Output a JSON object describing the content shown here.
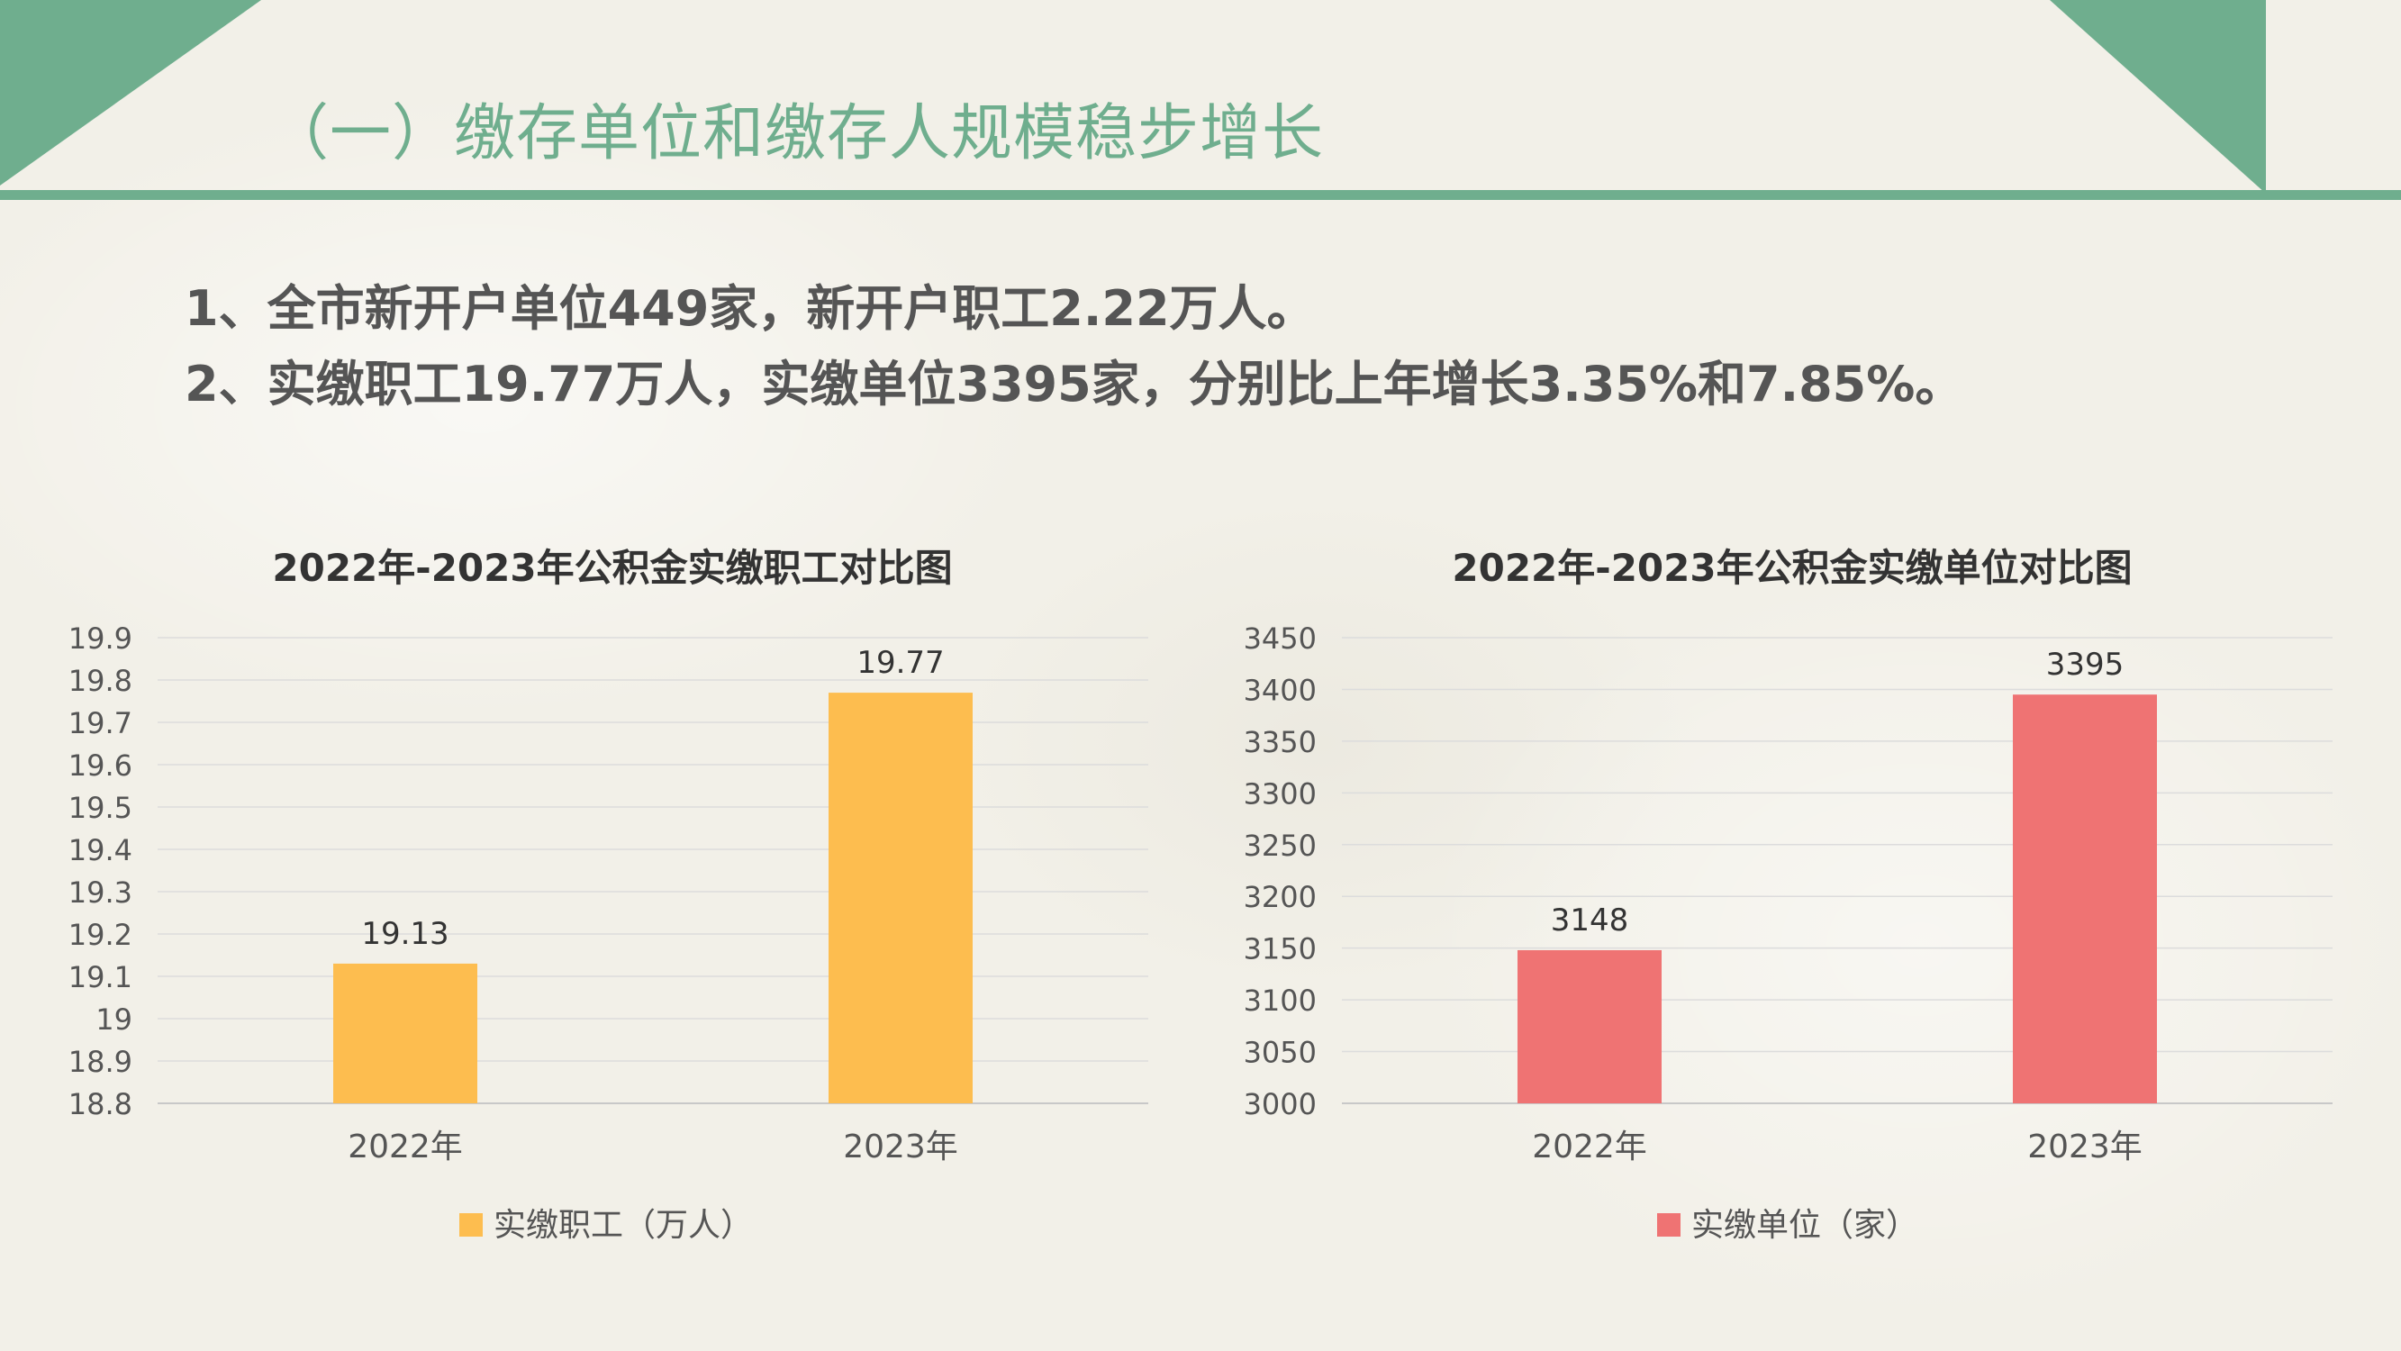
{
  "slide": {
    "title": "（一）缴存单位和缴存人规模稳步增长",
    "points": [
      "1、全市新开户单位449家，新开户职工2.22万人。",
      "2、实缴职工19.77万人，实缴单位3395家，分别比上年增长3.35%和7.85%。"
    ],
    "accent_color": "#6fae8e"
  },
  "chart_data": [
    {
      "type": "bar",
      "title": "2022年-2023年公积金实缴职工对比图",
      "categories": [
        "2022年",
        "2023年"
      ],
      "series": [
        {
          "name": "实缴职工（万人）",
          "values": [
            19.13,
            19.77
          ],
          "color": "#fdbd4f"
        }
      ],
      "data_labels": [
        "19.13",
        "19.77"
      ],
      "ylim": [
        18.8,
        19.9
      ],
      "yticks": [
        18.8,
        18.9,
        19,
        19.1,
        19.2,
        19.3,
        19.4,
        19.5,
        19.6,
        19.7,
        19.8,
        19.9
      ],
      "ytick_labels": [
        "18.8",
        "18.9",
        "19",
        "19.1",
        "19.2",
        "19.3",
        "19.4",
        "19.5",
        "19.6",
        "19.7",
        "19.8",
        "19.9"
      ],
      "grid": true,
      "legend": "bottom"
    },
    {
      "type": "bar",
      "title": "2022年-2023年公积金实缴单位对比图",
      "categories": [
        "2022年",
        "2023年"
      ],
      "series": [
        {
          "name": "实缴单位（家）",
          "values": [
            3148,
            3395
          ],
          "color": "#ef7373"
        }
      ],
      "data_labels": [
        "3148",
        "3395"
      ],
      "ylim": [
        3000,
        3450
      ],
      "yticks": [
        3000,
        3050,
        3100,
        3150,
        3200,
        3250,
        3300,
        3350,
        3400,
        3450
      ],
      "ytick_labels": [
        "3000",
        "3050",
        "3100",
        "3150",
        "3200",
        "3250",
        "3300",
        "3350",
        "3400",
        "3450"
      ],
      "grid": true,
      "legend": "bottom"
    }
  ]
}
